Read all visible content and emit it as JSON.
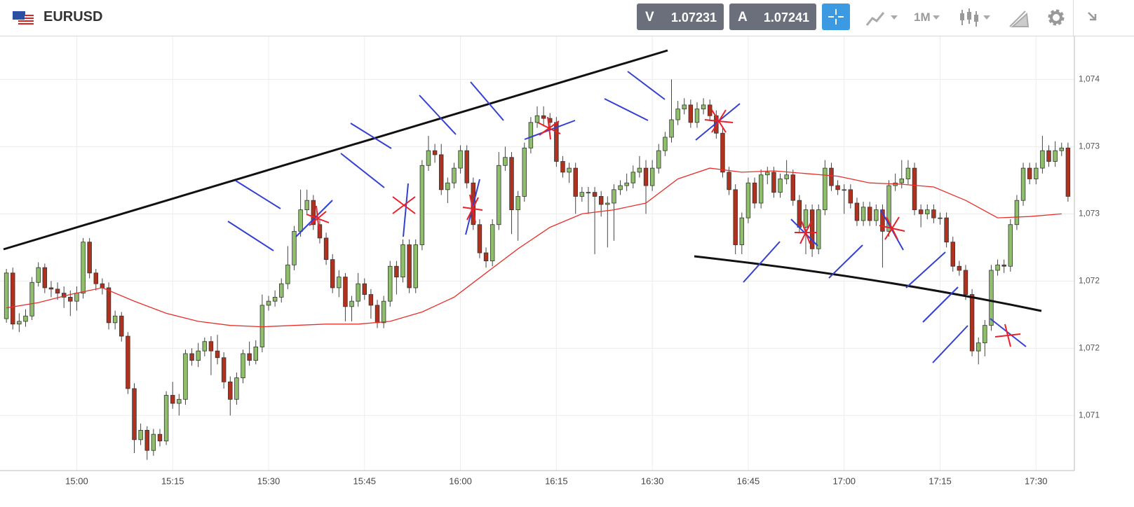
{
  "header": {
    "symbol": "EURUSD",
    "sell": {
      "label": "V",
      "price": 1.07231
    },
    "buy": {
      "label": "A",
      "price": 1.07241
    },
    "timeframe": "1M"
  },
  "chart_data": {
    "type": "candlestick",
    "up_color": "#8fbf6a",
    "down_color": "#b0321e",
    "grid": true,
    "xlim": [
      "14:48",
      "17:36"
    ],
    "xticks": [
      "15:00",
      "15:15",
      "15:30",
      "15:45",
      "16:00",
      "16:15",
      "16:30",
      "16:45",
      "17:00",
      "17:15",
      "17:30"
    ],
    "ylim": [
      1.07109,
      1.07432
    ],
    "yticks": [
      {
        "value": 1.074,
        "label": "1,074"
      },
      {
        "value": 1.0735,
        "label": "1,073"
      },
      {
        "value": 1.073,
        "label": "1,073"
      },
      {
        "value": 1.0725,
        "label": "1,072"
      },
      {
        "value": 1.072,
        "label": "1,072"
      },
      {
        "value": 1.0715,
        "label": "1,071"
      }
    ],
    "x": [
      "14:49",
      "14:50",
      "14:51",
      "14:52",
      "14:53",
      "14:54",
      "14:55",
      "14:56",
      "14:57",
      "14:58",
      "14:59",
      "15:00",
      "15:01",
      "15:02",
      "15:03",
      "15:04",
      "15:05",
      "15:06",
      "15:07",
      "15:08",
      "15:09",
      "15:10",
      "15:11",
      "15:12",
      "15:13",
      "15:14",
      "15:15",
      "15:16",
      "15:17",
      "15:18",
      "15:19",
      "15:20",
      "15:21",
      "15:22",
      "15:23",
      "15:24",
      "15:25",
      "15:26",
      "15:27",
      "15:28",
      "15:29",
      "15:30",
      "15:31",
      "15:32",
      "15:33",
      "15:34",
      "15:35",
      "15:36",
      "15:37",
      "15:38",
      "15:39",
      "15:40",
      "15:41",
      "15:42",
      "15:43",
      "15:44",
      "15:45",
      "15:46",
      "15:47",
      "15:48",
      "15:49",
      "15:50",
      "15:51",
      "15:52",
      "15:53",
      "15:54",
      "15:55",
      "15:56",
      "15:57",
      "15:58",
      "15:59",
      "16:00",
      "16:01",
      "16:02",
      "16:03",
      "16:04",
      "16:05",
      "16:06",
      "16:07",
      "16:08",
      "16:09",
      "16:10",
      "16:11",
      "16:12",
      "16:13",
      "16:14",
      "16:15",
      "16:16",
      "16:17",
      "16:18",
      "16:19",
      "16:20",
      "16:21",
      "16:22",
      "16:23",
      "16:24",
      "16:25",
      "16:26",
      "16:27",
      "16:28",
      "16:29",
      "16:30",
      "16:31",
      "16:32",
      "16:33",
      "16:34",
      "16:35",
      "16:36",
      "16:37",
      "16:38",
      "16:39",
      "16:40",
      "16:41",
      "16:42",
      "16:43",
      "16:44",
      "16:45",
      "16:46",
      "16:47",
      "16:48",
      "16:49",
      "16:50",
      "16:51",
      "16:52",
      "16:53",
      "16:54",
      "16:55",
      "16:56",
      "16:57",
      "16:58",
      "16:59",
      "17:00",
      "17:01",
      "17:02",
      "17:03",
      "17:04",
      "17:05",
      "17:06",
      "17:07",
      "17:08",
      "17:09",
      "17:10",
      "17:11",
      "17:12",
      "17:13",
      "17:14",
      "17:15",
      "17:16",
      "17:17",
      "17:18",
      "17:19",
      "17:20",
      "17:21",
      "17:22",
      "17:23",
      "17:24",
      "17:25",
      "17:26",
      "17:27",
      "17:28",
      "17:29",
      "17:30",
      "17:31",
      "17:32",
      "17:33",
      "17:34",
      "17:35"
    ],
    "ohlc": [
      [
        1.07222,
        1.07259,
        1.07219,
        1.07256
      ],
      [
        1.07256,
        1.0726,
        1.07214,
        1.07218
      ],
      [
        1.07218,
        1.07226,
        1.07212,
        1.0722
      ],
      [
        1.0722,
        1.07229,
        1.07216,
        1.07224
      ],
      [
        1.07224,
        1.07253,
        1.07221,
        1.07249
      ],
      [
        1.07249,
        1.07264,
        1.07246,
        1.0726
      ],
      [
        1.0726,
        1.07263,
        1.07241,
        1.07245
      ],
      [
        1.07245,
        1.0725,
        1.07238,
        1.07244
      ],
      [
        1.07244,
        1.07249,
        1.07236,
        1.07241
      ],
      [
        1.07241,
        1.07246,
        1.0723,
        1.07238
      ],
      [
        1.07238,
        1.07243,
        1.07224,
        1.07235
      ],
      [
        1.07235,
        1.07246,
        1.07228,
        1.07241
      ],
      [
        1.07241,
        1.07282,
        1.07237,
        1.07279
      ],
      [
        1.07279,
        1.07282,
        1.07252,
        1.07256
      ],
      [
        1.07256,
        1.07259,
        1.07243,
        1.07248
      ],
      [
        1.07248,
        1.07252,
        1.0724,
        1.07245
      ],
      [
        1.07245,
        1.07249,
        1.07214,
        1.07219
      ],
      [
        1.07219,
        1.07228,
        1.07214,
        1.07224
      ],
      [
        1.07224,
        1.07227,
        1.07205,
        1.07209
      ],
      [
        1.07209,
        1.07212,
        1.07166,
        1.0717
      ],
      [
        1.0717,
        1.07174,
        1.07122,
        1.07132
      ],
      [
        1.07132,
        1.07144,
        1.07128,
        1.07139
      ],
      [
        1.07139,
        1.07142,
        1.07117,
        1.07124
      ],
      [
        1.07124,
        1.0714,
        1.0712,
        1.07136
      ],
      [
        1.07136,
        1.0714,
        1.07127,
        1.07131
      ],
      [
        1.07131,
        1.07168,
        1.07128,
        1.07165
      ],
      [
        1.07165,
        1.07175,
        1.07155,
        1.07159
      ],
      [
        1.07159,
        1.07166,
        1.0715,
        1.07162
      ],
      [
        1.07162,
        1.07199,
        1.07158,
        1.07196
      ],
      [
        1.07196,
        1.072,
        1.07187,
        1.07191
      ],
      [
        1.07191,
        1.07204,
        1.07186,
        1.07198
      ],
      [
        1.07198,
        1.07208,
        1.07194,
        1.07205
      ],
      [
        1.07205,
        1.07209,
        1.0718,
        1.07198
      ],
      [
        1.07198,
        1.0721,
        1.07188,
        1.07193
      ],
      [
        1.07193,
        1.07197,
        1.0717,
        1.07175
      ],
      [
        1.07175,
        1.07179,
        1.0715,
        1.07162
      ],
      [
        1.07162,
        1.07182,
        1.07158,
        1.07178
      ],
      [
        1.07178,
        1.07199,
        1.07174,
        1.07196
      ],
      [
        1.07196,
        1.07205,
        1.07187,
        1.07191
      ],
      [
        1.07191,
        1.07206,
        1.07188,
        1.07201
      ],
      [
        1.07201,
        1.0724,
        1.07197,
        1.07232
      ],
      [
        1.07232,
        1.07239,
        1.07228,
        1.07235
      ],
      [
        1.07235,
        1.07243,
        1.07231,
        1.07238
      ],
      [
        1.07238,
        1.07252,
        1.07234,
        1.07248
      ],
      [
        1.07248,
        1.07276,
        1.07244,
        1.07262
      ],
      [
        1.07262,
        1.07291,
        1.07258,
        1.07287
      ],
      [
        1.07287,
        1.07318,
        1.07283,
        1.07303
      ],
      [
        1.07303,
        1.07318,
        1.07299,
        1.0731
      ],
      [
        1.0731,
        1.07314,
        1.07288,
        1.07292
      ],
      [
        1.07292,
        1.07296,
        1.07278,
        1.07282
      ],
      [
        1.07282,
        1.07286,
        1.07262,
        1.07266
      ],
      [
        1.07266,
        1.0727,
        1.07241,
        1.07245
      ],
      [
        1.07245,
        1.07258,
        1.07238,
        1.07253
      ],
      [
        1.07253,
        1.07256,
        1.0722,
        1.07231
      ],
      [
        1.07231,
        1.07239,
        1.0722,
        1.07235
      ],
      [
        1.07235,
        1.07256,
        1.07231,
        1.07248
      ],
      [
        1.07248,
        1.07252,
        1.07236,
        1.0724
      ],
      [
        1.0724,
        1.07244,
        1.07222,
        1.07232
      ],
      [
        1.07232,
        1.07236,
        1.07215,
        1.07219
      ],
      [
        1.07219,
        1.07239,
        1.07215,
        1.07235
      ],
      [
        1.07235,
        1.07265,
        1.07231,
        1.07261
      ],
      [
        1.07261,
        1.07265,
        1.0724,
        1.07253
      ],
      [
        1.07253,
        1.07281,
        1.07249,
        1.07277
      ],
      [
        1.07277,
        1.07281,
        1.07241,
        1.07245
      ],
      [
        1.07245,
        1.07281,
        1.07241,
        1.07277
      ],
      [
        1.07277,
        1.0734,
        1.07273,
        1.07336
      ],
      [
        1.07336,
        1.07358,
        1.07332,
        1.07347
      ],
      [
        1.07347,
        1.07352,
        1.07338,
        1.07344
      ],
      [
        1.07344,
        1.07352,
        1.07314,
        1.07318
      ],
      [
        1.07318,
        1.07327,
        1.07308,
        1.07323
      ],
      [
        1.07323,
        1.07338,
        1.07319,
        1.07334
      ],
      [
        1.07334,
        1.07351,
        1.0733,
        1.07347
      ],
      [
        1.07347,
        1.07351,
        1.07319,
        1.07323
      ],
      [
        1.07323,
        1.07327,
        1.07288,
        1.07292
      ],
      [
        1.07292,
        1.07296,
        1.07267,
        1.07271
      ],
      [
        1.07271,
        1.07275,
        1.0726,
        1.07265
      ],
      [
        1.07265,
        1.07296,
        1.07261,
        1.07292
      ],
      [
        1.07292,
        1.07346,
        1.07288,
        1.07336
      ],
      [
        1.07336,
        1.0735,
        1.07332,
        1.07342
      ],
      [
        1.07342,
        1.07346,
        1.07285,
        1.07303
      ],
      [
        1.07303,
        1.07317,
        1.0728,
        1.07313
      ],
      [
        1.07313,
        1.07353,
        1.07309,
        1.07349
      ],
      [
        1.07349,
        1.07372,
        1.07345,
        1.07368
      ],
      [
        1.07368,
        1.0738,
        1.07364,
        1.07373
      ],
      [
        1.07373,
        1.0738,
        1.07365,
        1.07371
      ],
      [
        1.07371,
        1.07375,
        1.07362,
        1.07368
      ],
      [
        1.07368,
        1.07372,
        1.07335,
        1.07339
      ],
      [
        1.07339,
        1.07343,
        1.07327,
        1.07331
      ],
      [
        1.07331,
        1.07338,
        1.07323,
        1.07334
      ],
      [
        1.07334,
        1.07338,
        1.073,
        1.07313
      ],
      [
        1.07313,
        1.0732,
        1.07309,
        1.07316
      ],
      [
        1.07316,
        1.0732,
        1.073,
        1.07316
      ],
      [
        1.07316,
        1.0732,
        1.0727,
        1.07313
      ],
      [
        1.07313,
        1.07317,
        1.07298,
        1.07307
      ],
      [
        1.07307,
        1.07313,
        1.07275,
        1.07308
      ],
      [
        1.07308,
        1.07322,
        1.0728,
        1.07318
      ],
      [
        1.07318,
        1.07325,
        1.07314,
        1.07321
      ],
      [
        1.07321,
        1.0733,
        1.07317,
        1.07323
      ],
      [
        1.07323,
        1.07336,
        1.07319,
        1.07331
      ],
      [
        1.07331,
        1.07343,
        1.07327,
        1.07334
      ],
      [
        1.07334,
        1.0734,
        1.073,
        1.07321
      ],
      [
        1.07321,
        1.0734,
        1.07317,
        1.07334
      ],
      [
        1.07334,
        1.07352,
        1.0733,
        1.07347
      ],
      [
        1.07347,
        1.07361,
        1.07343,
        1.07357
      ],
      [
        1.07357,
        1.074,
        1.07353,
        1.0737
      ],
      [
        1.0737,
        1.07384,
        1.07366,
        1.07378
      ],
      [
        1.07378,
        1.07386,
        1.07374,
        1.07381
      ],
      [
        1.07381,
        1.07385,
        1.07364,
        1.07368
      ],
      [
        1.07368,
        1.07383,
        1.07364,
        1.07378
      ],
      [
        1.07378,
        1.07386,
        1.07374,
        1.07381
      ],
      [
        1.07381,
        1.07385,
        1.07369,
        1.07373
      ],
      [
        1.07373,
        1.07377,
        1.07356,
        1.0736
      ],
      [
        1.0736,
        1.07364,
        1.07327,
        1.07331
      ],
      [
        1.07331,
        1.07335,
        1.07314,
        1.07318
      ],
      [
        1.07318,
        1.07322,
        1.0727,
        1.07277
      ],
      [
        1.07277,
        1.07301,
        1.0727,
        1.07297
      ],
      [
        1.07297,
        1.07327,
        1.07293,
        1.07323
      ],
      [
        1.07323,
        1.07327,
        1.07304,
        1.07308
      ],
      [
        1.07308,
        1.07333,
        1.07304,
        1.07329
      ],
      [
        1.07329,
        1.07335,
        1.07322,
        1.07331
      ],
      [
        1.07331,
        1.07335,
        1.07312,
        1.07316
      ],
      [
        1.07316,
        1.0733,
        1.07312,
        1.07326
      ],
      [
        1.07326,
        1.0734,
        1.07322,
        1.07329
      ],
      [
        1.07329,
        1.07333,
        1.07306,
        1.0731
      ],
      [
        1.0731,
        1.07314,
        1.07286,
        1.0729
      ],
      [
        1.0729,
        1.07307,
        1.0727,
        1.07303
      ],
      [
        1.07303,
        1.07307,
        1.07268,
        1.07274
      ],
      [
        1.07274,
        1.07307,
        1.0727,
        1.07303
      ],
      [
        1.07303,
        1.0734,
        1.07299,
        1.07334
      ],
      [
        1.07334,
        1.07338,
        1.07317,
        1.07321
      ],
      [
        1.07321,
        1.07325,
        1.07314,
        1.07318
      ],
      [
        1.07318,
        1.07322,
        1.073,
        1.07318
      ],
      [
        1.07318,
        1.07322,
        1.07304,
        1.07308
      ],
      [
        1.07308,
        1.07312,
        1.07291,
        1.07295
      ],
      [
        1.07295,
        1.07309,
        1.07291,
        1.07305
      ],
      [
        1.07305,
        1.07309,
        1.07291,
        1.07295
      ],
      [
        1.07295,
        1.07307,
        1.07291,
        1.07303
      ],
      [
        1.07303,
        1.07307,
        1.0726,
        1.07287
      ],
      [
        1.07287,
        1.07325,
        1.07283,
        1.07321
      ],
      [
        1.07321,
        1.0733,
        1.07317,
        1.07323
      ],
      [
        1.07323,
        1.0734,
        1.07319,
        1.07326
      ],
      [
        1.07326,
        1.0734,
        1.07322,
        1.07334
      ],
      [
        1.07334,
        1.07338,
        1.07299,
        1.07303
      ],
      [
        1.07303,
        1.07307,
        1.0729,
        1.073
      ],
      [
        1.073,
        1.07307,
        1.07296,
        1.07303
      ],
      [
        1.07303,
        1.07307,
        1.07293,
        1.07297
      ],
      [
        1.07297,
        1.07301,
        1.07292,
        1.07297
      ],
      [
        1.07297,
        1.07301,
        1.07275,
        1.07279
      ],
      [
        1.07279,
        1.07283,
        1.07257,
        1.07261
      ],
      [
        1.07261,
        1.07265,
        1.07254,
        1.07258
      ],
      [
        1.07258,
        1.07262,
        1.07236,
        1.0724
      ],
      [
        1.0724,
        1.07244,
        1.07194,
        1.07198
      ],
      [
        1.07198,
        1.07208,
        1.07188,
        1.07204
      ],
      [
        1.07204,
        1.07221,
        1.07194,
        1.07217
      ],
      [
        1.07217,
        1.07262,
        1.07213,
        1.07258
      ],
      [
        1.07258,
        1.07266,
        1.07254,
        1.07262
      ],
      [
        1.07262,
        1.07266,
        1.07256,
        1.07261
      ],
      [
        1.07261,
        1.07296,
        1.07257,
        1.07292
      ],
      [
        1.07292,
        1.07314,
        1.07288,
        1.0731
      ],
      [
        1.0731,
        1.07338,
        1.07306,
        1.07334
      ],
      [
        1.07334,
        1.07338,
        1.07322,
        1.07326
      ],
      [
        1.07326,
        1.07338,
        1.07322,
        1.07334
      ],
      [
        1.07334,
        1.07358,
        1.0733,
        1.07347
      ],
      [
        1.07347,
        1.07351,
        1.07335,
        1.07339
      ],
      [
        1.07339,
        1.07354,
        1.07335,
        1.07347
      ],
      [
        1.07347,
        1.07353,
        1.07343,
        1.07349
      ],
      [
        1.07349,
        1.07353,
        1.07309,
        1.07313
      ]
    ],
    "moving_average": {
      "color": "#e8302a",
      "x": [
        "14:49",
        "14:54",
        "14:59",
        "15:04",
        "15:09",
        "15:14",
        "15:19",
        "15:24",
        "15:29",
        "15:34",
        "15:39",
        "15:44",
        "15:49",
        "15:54",
        "15:59",
        "16:04",
        "16:09",
        "16:14",
        "16:19",
        "16:24",
        "16:29",
        "16:34",
        "16:39",
        "16:44",
        "16:49",
        "16:54",
        "16:59",
        "17:04",
        "17:09",
        "17:14",
        "17:19",
        "17:24",
        "17:29",
        "17:34"
      ],
      "values": [
        1.0723,
        1.07234,
        1.0724,
        1.07245,
        1.07235,
        1.07226,
        1.0722,
        1.07217,
        1.07216,
        1.07217,
        1.07218,
        1.07218,
        1.0722,
        1.07227,
        1.07238,
        1.07256,
        1.07274,
        1.0729,
        1.073,
        1.07303,
        1.07308,
        1.07326,
        1.07334,
        1.07331,
        1.07332,
        1.0733,
        1.07328,
        1.07323,
        1.07322,
        1.0732,
        1.0731,
        1.07297,
        1.07298,
        1.073
      ]
    }
  }
}
